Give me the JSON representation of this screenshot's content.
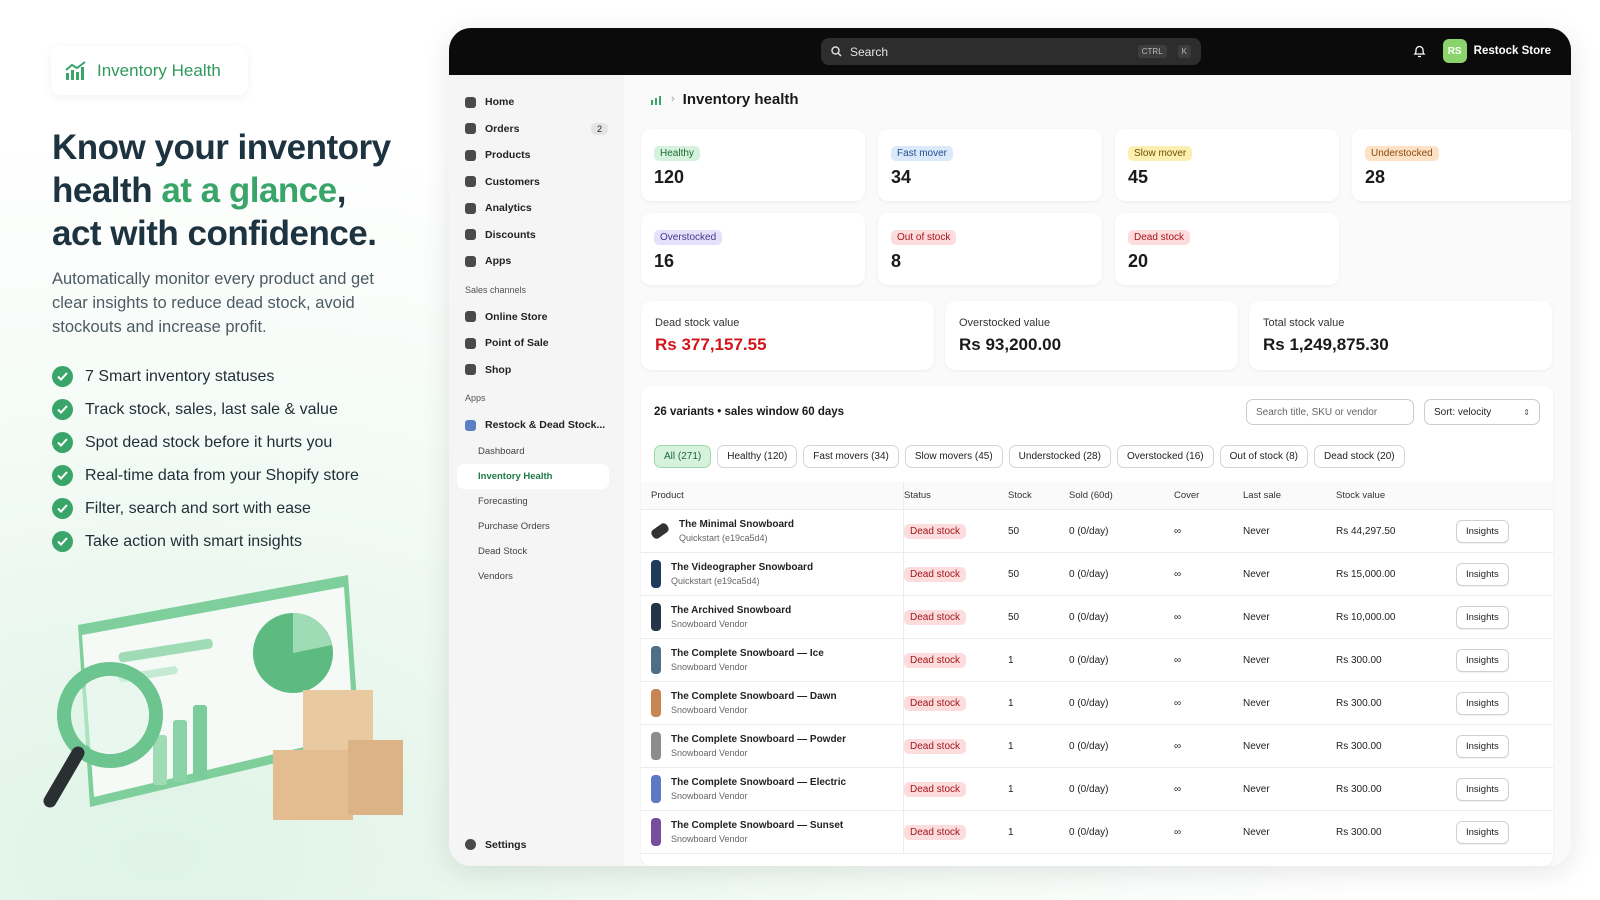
{
  "badge": "Inventory Health",
  "headline": {
    "line1": "Know your inventory",
    "line2_start": "health",
    "line2_highlight": "at a glance",
    "line2_end": ",",
    "line3": "act with confidence."
  },
  "description": "Automatically monitor every product and get clear insights to reduce dead stock, avoid stockouts and increase profit.",
  "features": [
    "7 Smart inventory statuses",
    "Track stock, sales, last sale & value",
    "Spot dead stock before it hurts you",
    "Real-time data from your Shopify store",
    "Filter, search and sort with ease",
    "Take action with smart insights"
  ],
  "topbar": {
    "search": "Search",
    "shortcut": [
      "CTRL",
      "K"
    ],
    "avatar": "RS",
    "store": "Restock Store"
  },
  "nav": {
    "main": [
      {
        "label": "Home"
      },
      {
        "label": "Orders",
        "badge": 2
      },
      {
        "label": "Products"
      },
      {
        "label": "Customers"
      },
      {
        "label": "Analytics"
      },
      {
        "label": "Discounts"
      },
      {
        "label": "Apps"
      }
    ],
    "sales_channels_label": "Sales channels",
    "channels": [
      "Online Store",
      "Point of Sale",
      "Shop"
    ],
    "apps_label": "Apps",
    "app": "Restock & Dead Stock...",
    "app_pages": [
      "Dashboard",
      "Inventory Health",
      "Forecasting",
      "Purchase Orders",
      "Dead Stock",
      "Vendors"
    ],
    "settings": "Settings"
  },
  "page_title": "Inventory health",
  "status_cards": [
    {
      "label": "Healthy",
      "value": 120
    },
    {
      "label": "Fast mover",
      "value": 34
    },
    {
      "label": "Slow mover",
      "value": 45
    },
    {
      "label": "Understocked",
      "value": 28
    },
    {
      "label": "Overstocked",
      "value": 16
    },
    {
      "label": "Out of stock",
      "value": 8
    },
    {
      "label": "Dead stock",
      "value": 20
    }
  ],
  "value_cards": [
    {
      "label": "Dead stock value",
      "value": "Rs 377,157.55"
    },
    {
      "label": "Overstocked value",
      "value": "Rs 93,200.00"
    },
    {
      "label": "Total stock value",
      "value": "Rs 1,249,875.30"
    }
  ],
  "table": {
    "summary": "26 variants • sales window 60 days",
    "search_placeholder": "Search title, SKU or vendor",
    "sort": "Sort: velocity",
    "filters": [
      "All (271)",
      "Healthy (120)",
      "Fast movers (34)",
      "Slow movers (45)",
      "Understocked (28)",
      "Overstocked (16)",
      "Out of stock (8)",
      "Dead stock (20)"
    ],
    "columns": [
      "Product",
      "Status",
      "Stock",
      "Sold (60d)",
      "Cover",
      "Last sale",
      "Stock value"
    ],
    "rows": [
      {
        "product": "The Minimal Snowboard",
        "vendor": "Quickstart (e19ca5d4)",
        "status": "Dead stock",
        "stock": 50,
        "sold": "0 (0/day)",
        "cover": "∞",
        "last_sale": "Never",
        "value": "Rs 44,297.50",
        "action": "Insights"
      },
      {
        "product": "The Videographer Snowboard",
        "vendor": "Quickstart (e19ca5d4)",
        "status": "Dead stock",
        "stock": 50,
        "sold": "0 (0/day)",
        "cover": "∞",
        "last_sale": "Never",
        "value": "Rs 15,000.00",
        "action": "Insights"
      },
      {
        "product": "The Archived Snowboard",
        "vendor": "Snowboard Vendor",
        "status": "Dead stock",
        "stock": 50,
        "sold": "0 (0/day)",
        "cover": "∞",
        "last_sale": "Never",
        "value": "Rs 10,000.00",
        "action": "Insights"
      },
      {
        "product": "The Complete Snowboard — Ice",
        "vendor": "Snowboard Vendor",
        "status": "Dead stock",
        "stock": 1,
        "sold": "0 (0/day)",
        "cover": "∞",
        "last_sale": "Never",
        "value": "Rs 300.00",
        "action": "Insights"
      },
      {
        "product": "The Complete Snowboard — Dawn",
        "vendor": "Snowboard Vendor",
        "status": "Dead stock",
        "stock": 1,
        "sold": "0 (0/day)",
        "cover": "∞",
        "last_sale": "Never",
        "value": "Rs 300.00",
        "action": "Insights"
      },
      {
        "product": "The Complete Snowboard — Powder",
        "vendor": "Snowboard Vendor",
        "status": "Dead stock",
        "stock": 1,
        "sold": "0 (0/day)",
        "cover": "∞",
        "last_sale": "Never",
        "value": "Rs 300.00",
        "action": "Insights"
      },
      {
        "product": "The Complete Snowboard — Electric",
        "vendor": "Snowboard Vendor",
        "status": "Dead stock",
        "stock": 1,
        "sold": "0 (0/day)",
        "cover": "∞",
        "last_sale": "Never",
        "value": "Rs 300.00",
        "action": "Insights"
      },
      {
        "product": "The Complete Snowboard — Sunset",
        "vendor": "Snowboard Vendor",
        "status": "Dead stock",
        "stock": 1,
        "sold": "0 (0/day)",
        "cover": "∞",
        "last_sale": "Never",
        "value": "Rs 300.00",
        "action": "Insights"
      }
    ]
  }
}
